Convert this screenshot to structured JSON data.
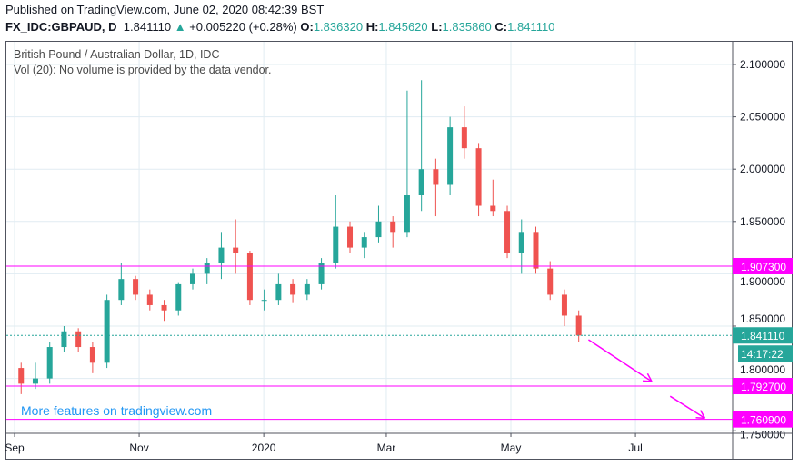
{
  "header": {
    "published": "Published on TradingView.com, June 02, 2020 08:42:39 BST",
    "symbol": "FX_IDC:GBPAUD, D",
    "last": "1.841110",
    "change": "+0.005220 (+0.28%)",
    "o_label": "O:",
    "o": "1.836320",
    "h_label": "H:",
    "h": "1.845620",
    "l_label": "L:",
    "l": "1.835860",
    "c_label": "C:",
    "c": "1.841110"
  },
  "legend": {
    "title": "British Pound / Australian Dollar, 1D, IDC",
    "vol": "Vol (20): No volume is provided by the data vendor."
  },
  "promo": "More features on tradingview.com",
  "countdown": "14:17:22",
  "colors": {
    "up": "#26a69a",
    "down": "#ef5350",
    "level": "#ff00ff",
    "grid": "#e1ecf2"
  },
  "chart_data": {
    "type": "candlestick",
    "title": "British Pound / Australian Dollar, 1D, IDC",
    "ylim": [
      1.75,
      2.12
    ],
    "xlim": [
      "2019-08-29",
      "2020-08-31"
    ],
    "y_ticks": [
      "2.100000",
      "2.050000",
      "2.000000",
      "1.950000",
      "1.900000",
      "1.850000",
      "1.800000",
      "1.750000"
    ],
    "x_ticks": [
      {
        "date": "2019-09-01",
        "label": "Sep"
      },
      {
        "date": "2019-11-01",
        "label": "Nov"
      },
      {
        "date": "2020-01-01",
        "label": "2020"
      },
      {
        "date": "2020-03-01",
        "label": "Mar"
      },
      {
        "date": "2020-05-01",
        "label": "May"
      },
      {
        "date": "2020-07-01",
        "label": "Jul"
      }
    ],
    "grid": true,
    "candles_weekly_approx": [
      [
        "2019-09-02",
        1.81,
        1.815,
        1.785,
        1.795
      ],
      [
        "2019-09-09",
        1.795,
        1.815,
        1.79,
        1.8
      ],
      [
        "2019-09-16",
        1.8,
        1.835,
        1.795,
        1.83
      ],
      [
        "2019-09-23",
        1.83,
        1.85,
        1.825,
        1.845
      ],
      [
        "2019-09-30",
        1.845,
        1.848,
        1.825,
        1.83
      ],
      [
        "2019-10-07",
        1.83,
        1.835,
        1.805,
        1.815
      ],
      [
        "2019-10-14",
        1.815,
        1.88,
        1.81,
        1.875
      ],
      [
        "2019-10-21",
        1.875,
        1.91,
        1.87,
        1.895
      ],
      [
        "2019-10-28",
        1.895,
        1.898,
        1.875,
        1.88
      ],
      [
        "2019-11-04",
        1.88,
        1.885,
        1.865,
        1.87
      ],
      [
        "2019-11-11",
        1.87,
        1.875,
        1.855,
        1.865
      ],
      [
        "2019-11-18",
        1.865,
        1.892,
        1.86,
        1.89
      ],
      [
        "2019-11-25",
        1.89,
        1.905,
        1.885,
        1.9
      ],
      [
        "2019-12-02",
        1.9,
        1.915,
        1.89,
        1.91
      ],
      [
        "2019-12-09",
        1.91,
        1.94,
        1.895,
        1.925
      ],
      [
        "2019-12-16",
        1.925,
        1.952,
        1.9,
        1.92
      ],
      [
        "2019-12-23",
        1.92,
        1.922,
        1.87,
        1.875
      ],
      [
        "2019-12-30",
        1.875,
        1.885,
        1.865,
        1.875
      ],
      [
        "2020-01-06",
        1.875,
        1.9,
        1.87,
        1.89
      ],
      [
        "2020-01-13",
        1.89,
        1.895,
        1.872,
        1.88
      ],
      [
        "2020-01-20",
        1.88,
        1.895,
        1.875,
        1.89
      ],
      [
        "2020-01-27",
        1.89,
        1.915,
        1.885,
        1.91
      ],
      [
        "2020-02-03",
        1.91,
        1.975,
        1.905,
        1.945
      ],
      [
        "2020-02-10",
        1.945,
        1.95,
        1.92,
        1.925
      ],
      [
        "2020-02-17",
        1.925,
        1.94,
        1.915,
        1.935
      ],
      [
        "2020-02-24",
        1.935,
        1.965,
        1.93,
        1.95
      ],
      [
        "2020-03-02",
        1.95,
        1.955,
        1.925,
        1.94
      ],
      [
        "2020-03-09",
        1.94,
        2.075,
        1.935,
        1.975
      ],
      [
        "2020-03-16",
        1.975,
        2.085,
        1.96,
        2.0
      ],
      [
        "2020-03-23",
        2.0,
        2.01,
        1.955,
        1.985
      ],
      [
        "2020-03-30",
        1.985,
        2.05,
        1.975,
        2.04
      ],
      [
        "2020-04-06",
        2.04,
        2.06,
        2.01,
        2.02
      ],
      [
        "2020-04-13",
        2.02,
        2.025,
        1.955,
        1.965
      ],
      [
        "2020-04-20",
        1.965,
        1.99,
        1.955,
        1.96
      ],
      [
        "2020-04-27",
        1.96,
        1.965,
        1.915,
        1.92
      ],
      [
        "2020-05-04",
        1.92,
        1.952,
        1.9,
        1.94
      ],
      [
        "2020-05-11",
        1.94,
        1.945,
        1.9,
        1.905
      ],
      [
        "2020-05-18",
        1.905,
        1.912,
        1.875,
        1.88
      ],
      [
        "2020-05-25",
        1.88,
        1.885,
        1.85,
        1.86
      ],
      [
        "2020-06-01",
        1.86,
        1.865,
        1.835,
        1.841
      ]
    ],
    "horizontal_levels": [
      {
        "value": 1.9073,
        "label": "1.907300"
      },
      {
        "value": 1.7927,
        "label": "1.792700"
      },
      {
        "value": 1.7609,
        "label": "1.760900"
      }
    ],
    "last_price": {
      "value": 1.84111,
      "label": "1.841110"
    },
    "annotations": [
      {
        "type": "arrow",
        "from": [
          "2020-06-08",
          1.837
        ],
        "to": [
          "2020-07-09",
          1.797
        ]
      },
      {
        "type": "arrow",
        "from": [
          "2020-07-18",
          1.783
        ],
        "to": [
          "2020-08-04",
          1.762
        ]
      }
    ]
  }
}
